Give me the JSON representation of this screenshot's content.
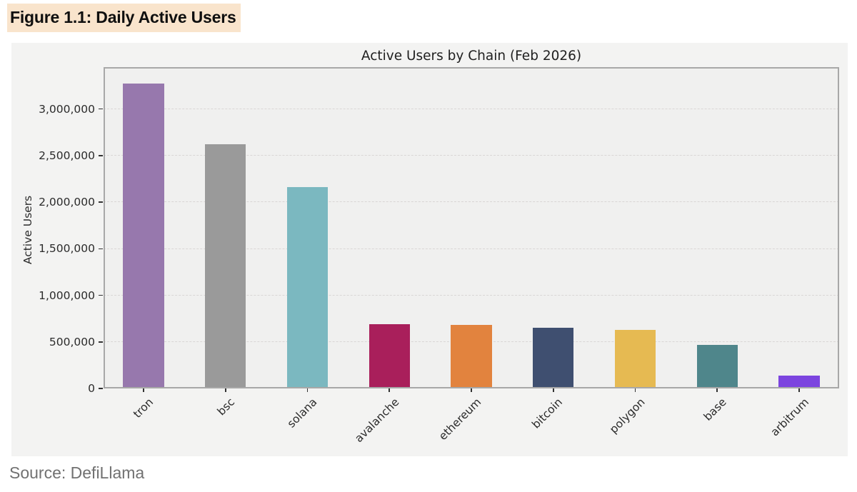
{
  "page": {
    "title": "Figure 1.1: Daily Active Users",
    "title_highlight_color": "#f9e4cc",
    "source": "Source: DefiLlama"
  },
  "chart_data": {
    "type": "bar",
    "title": "Active Users by Chain (Feb 2026)",
    "xlabel": "",
    "ylabel": "Active Users",
    "categories": [
      "tron",
      "bsc",
      "solana",
      "avalanche",
      "ethereum",
      "bitcoin",
      "polygon",
      "base",
      "arbitrum"
    ],
    "values": [
      3270000,
      2625000,
      2160000,
      690000,
      680000,
      650000,
      630000,
      470000,
      140000
    ],
    "bar_colors": [
      "#9778ad",
      "#9a9a9a",
      "#7bb8c0",
      "#a91f5b",
      "#e2833e",
      "#3f4f70",
      "#e6ba52",
      "#4f868b",
      "#7c45df"
    ],
    "ylim": [
      0,
      3450000
    ],
    "yticks": [
      0,
      500000,
      1000000,
      1500000,
      2000000,
      2500000,
      3000000
    ],
    "ytick_labels": [
      "0",
      "500,000",
      "1,000,000",
      "1,500,000",
      "2,000,000",
      "2,500,000",
      "3,000,000"
    ],
    "grid": "horizontal-dashed",
    "legend": "none",
    "plot_bg": "#f0f0ef",
    "panel_bg": "#f3f3f2"
  }
}
